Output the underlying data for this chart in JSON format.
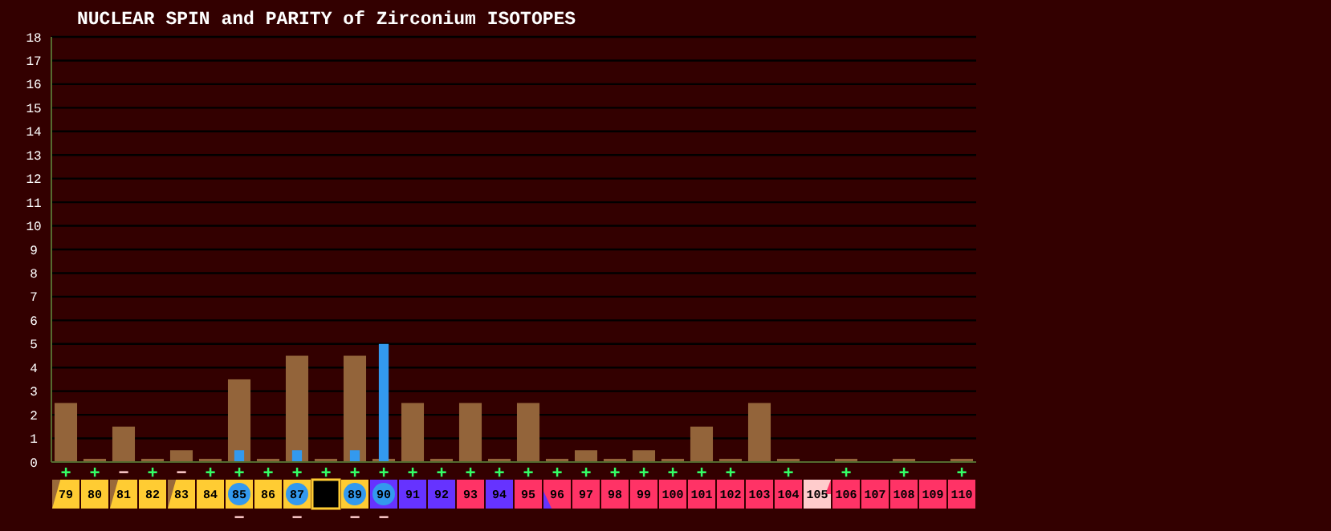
{
  "chart_data": {
    "type": "bar",
    "title": "NUCLEAR SPIN and PARITY of Zirconium ISOTOPES",
    "categories": [
      "79",
      "80",
      "81",
      "82",
      "83",
      "84",
      "85",
      "86",
      "87",
      null,
      "89",
      "90",
      "91",
      "92",
      "93",
      "94",
      "95",
      "96",
      "97",
      "98",
      "99",
      "100",
      "101",
      "102",
      "103",
      "104",
      "105",
      "106",
      "107",
      "108",
      "109",
      "110"
    ],
    "series": [
      {
        "color": "#93643a",
        "values": [
          2.5,
          0,
          1.5,
          0,
          0.5,
          0,
          3.5,
          0,
          4.5,
          0,
          4.5,
          0,
          2.5,
          0,
          2.5,
          0,
          2.5,
          0,
          0.5,
          0,
          0.5,
          0,
          1.5,
          0,
          2.5,
          0,
          null,
          0,
          null,
          0,
          null,
          0
        ],
        "value_labels": [
          "+",
          "+",
          "−",
          "+",
          "−",
          "+",
          "+",
          "+",
          "+",
          "+",
          "+",
          "+",
          "+",
          "+",
          "+",
          "+",
          "+",
          "+",
          "+",
          "+",
          "+",
          "+",
          "+",
          "+",
          null,
          "+",
          null,
          "+",
          null,
          "+",
          null,
          "+"
        ]
      },
      {
        "color": "#3399ee",
        "values": [
          null,
          null,
          null,
          null,
          null,
          null,
          0.5,
          null,
          0.5,
          null,
          0.5,
          5,
          null,
          null,
          null,
          null,
          null,
          null,
          null,
          null,
          null,
          null,
          null,
          null,
          null,
          null,
          null,
          null,
          null,
          null,
          null,
          null
        ],
        "value_labels": [
          null,
          null,
          null,
          null,
          null,
          null,
          "−",
          null,
          "−",
          null,
          "−",
          "−",
          null,
          null,
          null,
          null,
          null,
          null,
          null,
          null,
          null,
          null,
          null,
          null,
          null,
          null,
          null,
          null,
          null,
          null,
          null,
          null
        ]
      }
    ],
    "ylim": [
      0,
      18
    ],
    "yticks": [
      0,
      1,
      2,
      3,
      4,
      5,
      6,
      7,
      8,
      9,
      10,
      11,
      12,
      13,
      14,
      15,
      16,
      17,
      18
    ],
    "grid": "y"
  }
}
